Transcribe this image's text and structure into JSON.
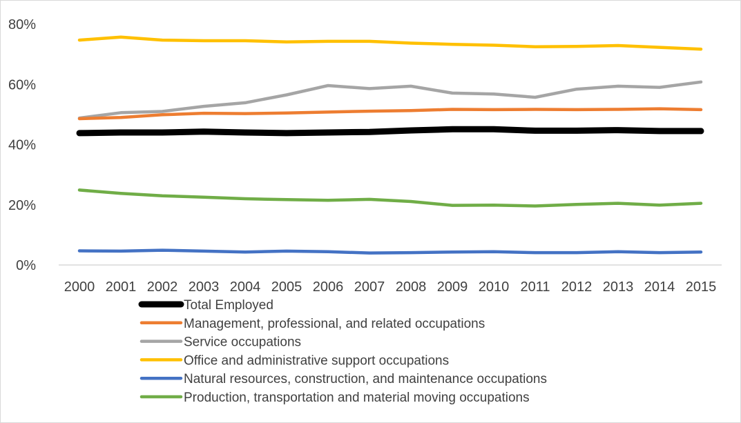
{
  "chart_data": {
    "type": "line",
    "x": [
      "2000",
      "2001",
      "2002",
      "2003",
      "2004",
      "2005",
      "2006",
      "2007",
      "2008",
      "2009",
      "2010",
      "2011",
      "2012",
      "2013",
      "2014",
      "2015"
    ],
    "ylim": [
      0,
      80
    ],
    "yticks": [
      0,
      20,
      40,
      60,
      80
    ],
    "ytick_labels": [
      "0%",
      "20%",
      "40%",
      "60%",
      "80%"
    ],
    "grid": false,
    "legend_position": "bottom",
    "series": [
      {
        "name": "Total Employed",
        "color": "#000000",
        "values": [
          43.8,
          44.0,
          44.0,
          44.3,
          44.0,
          43.8,
          44.0,
          44.2,
          44.7,
          45.1,
          45.1,
          44.6,
          44.6,
          44.8,
          44.5,
          44.5
        ]
      },
      {
        "name": "Management, professional, and related occupations",
        "color": "#ed7d31",
        "values": [
          48.6,
          49.0,
          49.9,
          50.4,
          50.3,
          50.5,
          50.8,
          51.1,
          51.3,
          51.7,
          51.6,
          51.7,
          51.6,
          51.7,
          51.9,
          51.6
        ]
      },
      {
        "name": "Service occupations",
        "color": "#a5a5a5",
        "values": [
          48.8,
          50.6,
          51.0,
          52.7,
          53.9,
          56.5,
          59.6,
          58.6,
          59.4,
          57.1,
          56.8,
          55.7,
          58.4,
          59.4,
          59.0,
          60.8
        ]
      },
      {
        "name": "Office and administrative support occupations",
        "color": "#ffc000",
        "values": [
          74.7,
          75.7,
          74.7,
          74.5,
          74.5,
          74.1,
          74.3,
          74.3,
          73.7,
          73.3,
          73.0,
          72.5,
          72.6,
          72.9,
          72.3,
          71.7
        ]
      },
      {
        "name": "Natural resources, construction, and maintenance occupations",
        "color": "#4472c4",
        "values": [
          4.7,
          4.6,
          4.9,
          4.6,
          4.3,
          4.6,
          4.4,
          4.0,
          4.1,
          4.3,
          4.4,
          4.1,
          4.1,
          4.4,
          4.1,
          4.3
        ]
      },
      {
        "name": "Production, transportation and material moving occupations",
        "color": "#70ad47",
        "values": [
          24.9,
          23.8,
          23.0,
          22.5,
          22.0,
          21.7,
          21.5,
          21.8,
          21.1,
          19.8,
          19.9,
          19.6,
          20.1,
          20.5,
          19.9,
          20.5
        ]
      }
    ]
  }
}
